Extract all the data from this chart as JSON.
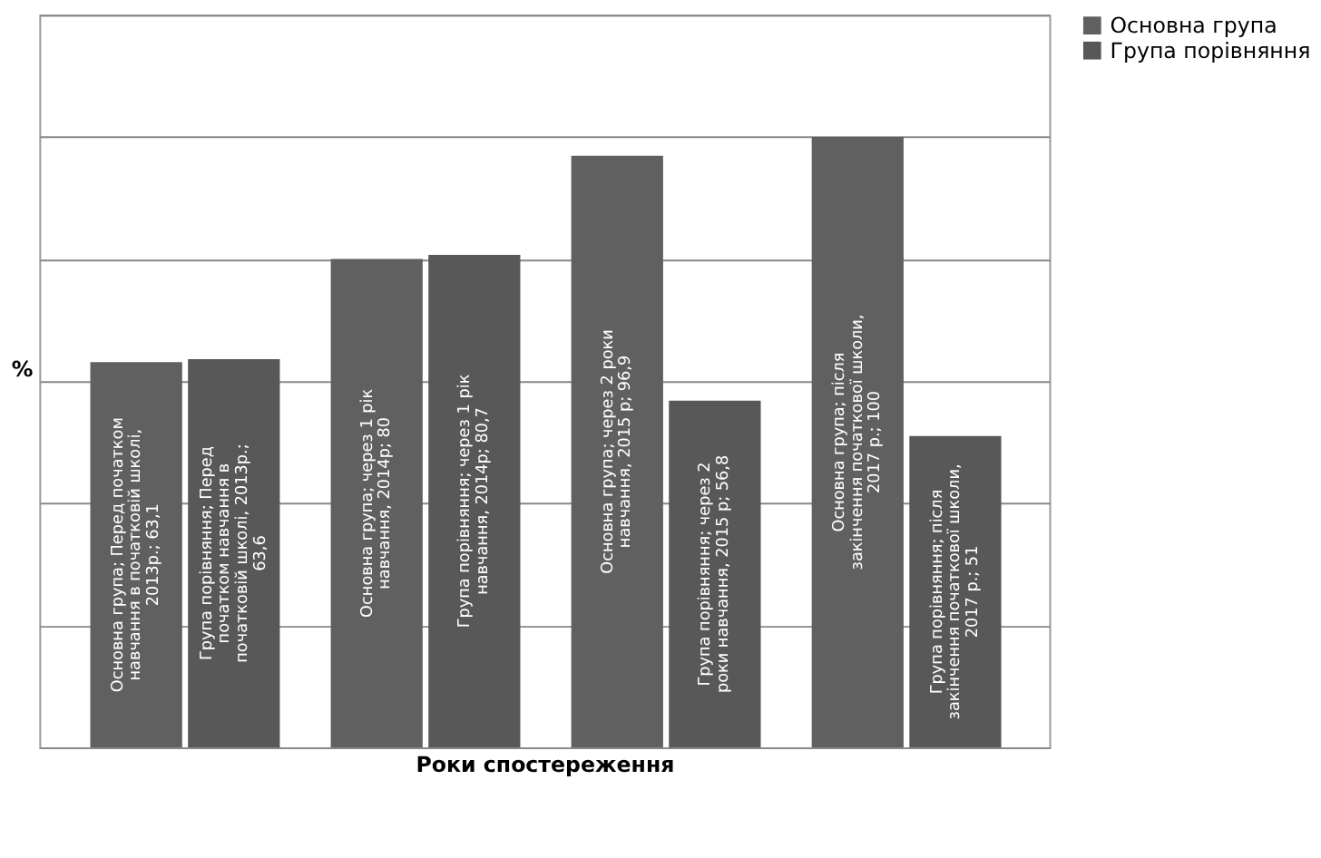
{
  "chart_data": {
    "type": "bar",
    "xlabel": "Роки спостереження",
    "ylabel": "%",
    "categories": [
      null,
      null,
      null,
      null
    ],
    "series": [
      {
        "name": "Основна група",
        "color": "#606060",
        "values": [
          63.1,
          80,
          96.9,
          100
        ],
        "value_labels": [
          "Основна група; Перед початком навчання в початковій школі, 2013р.; 63,1",
          "Основна група; через 1 рік навчання, 2014р; 80",
          "Основна група; через 2 роки навчання, 2015 р; 96,9",
          "Основна група; після закінчення початкової школи, 2017 р.; 100"
        ]
      },
      {
        "name": "Група порівняння",
        "color": "#585858",
        "values": [
          63.6,
          80.7,
          56.8,
          51
        ],
        "value_labels": [
          "Група порівняння; Перед початком навчання в початковій школі, 2013р.; 63,6",
          "Група порівняння; через 1 рік навчання, 2014р; 80,7",
          "Група порівняння; через 2 роки навчання, 2015 р; 56,8",
          "Група порівняння; після закінчення початкової школи, 2017 р.; 51"
        ]
      }
    ],
    "ylim": [
      0,
      120
    ],
    "yticks": [
      {
        "value": 0,
        "label": null
      },
      {
        "value": 20,
        "label": null
      },
      {
        "value": 40,
        "label": null
      },
      {
        "value": 60,
        "label": null
      },
      {
        "value": 80,
        "label": null
      },
      {
        "value": 100,
        "label": null
      },
      {
        "value": 120,
        "label": null
      }
    ],
    "grid": "y",
    "legend": "right",
    "tick_labels": false
  }
}
